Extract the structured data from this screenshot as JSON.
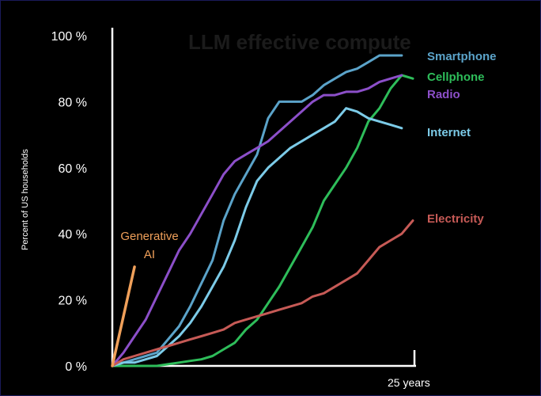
{
  "chart_data": {
    "type": "line",
    "title": "LLM effective compute",
    "xlabel": "",
    "ylabel": "Percent of US households",
    "x_tick_label": "25 years",
    "xlim": [
      0,
      27
    ],
    "ylim": [
      0,
      100
    ],
    "y_ticks": [
      {
        "value": 0,
        "label": "0 %"
      },
      {
        "value": 20,
        "label": "20 %"
      },
      {
        "value": 40,
        "label": "40 %"
      },
      {
        "value": 60,
        "label": "60 %"
      },
      {
        "value": 80,
        "label": "80 %"
      },
      {
        "value": 100,
        "label": "100 %"
      }
    ],
    "series": [
      {
        "name": "Smartphone",
        "color": "#5ba3c9",
        "x": [
          0,
          1,
          2,
          3,
          4,
          5,
          6,
          7,
          8,
          9,
          10,
          11,
          12,
          13,
          14,
          15,
          16,
          17,
          18,
          19,
          20,
          21,
          22,
          23,
          24,
          25,
          26
        ],
        "y": [
          0,
          1,
          2,
          3,
          4,
          8,
          12,
          18,
          25,
          32,
          44,
          52,
          58,
          64,
          75,
          80,
          80,
          80,
          82,
          85,
          87,
          89,
          90,
          92,
          94,
          94,
          94
        ]
      },
      {
        "name": "Cellphone",
        "color": "#2ebd5a",
        "x": [
          0,
          4,
          5,
          6,
          7,
          8,
          9,
          10,
          11,
          12,
          13,
          14,
          15,
          16,
          17,
          18,
          19,
          20,
          21,
          22,
          23,
          24,
          25,
          26,
          27
        ],
        "y": [
          0,
          0,
          0.5,
          1,
          1.5,
          2,
          3,
          5,
          7,
          11,
          14,
          19,
          24,
          30,
          36,
          42,
          50,
          55,
          60,
          66,
          74,
          78,
          84,
          88,
          87
        ]
      },
      {
        "name": "Radio",
        "color": "#8c4fc9",
        "x": [
          0,
          1,
          2,
          3,
          4,
          5,
          6,
          7,
          8,
          9,
          10,
          11,
          12,
          13,
          14,
          15,
          16,
          17,
          18,
          19,
          20,
          21,
          22,
          23,
          24,
          25,
          26
        ],
        "y": [
          0,
          4,
          9,
          14,
          21,
          28,
          35,
          40,
          46,
          52,
          58,
          62,
          64,
          66,
          68,
          71,
          74,
          77,
          80,
          82,
          82,
          83,
          83,
          84,
          86,
          87,
          88
        ]
      },
      {
        "name": "Internet",
        "color": "#7ccbe8",
        "x": [
          0,
          1,
          2,
          3,
          4,
          5,
          6,
          7,
          8,
          9,
          10,
          11,
          12,
          13,
          14,
          15,
          16,
          17,
          18,
          19,
          20,
          21,
          22,
          23,
          24,
          25,
          26
        ],
        "y": [
          0,
          1,
          1,
          2,
          3,
          6,
          9,
          13,
          18,
          24,
          30,
          38,
          48,
          56,
          60,
          63,
          66,
          68,
          70,
          72,
          74,
          78,
          77,
          75,
          74,
          73,
          72
        ]
      },
      {
        "name": "Electricity",
        "color": "#c65a56",
        "x": [
          0,
          1,
          2,
          3,
          4,
          5,
          6,
          7,
          8,
          9,
          10,
          11,
          12,
          13,
          14,
          15,
          16,
          17,
          18,
          19,
          20,
          21,
          22,
          23,
          24,
          25,
          26,
          27
        ],
        "y": [
          0,
          2,
          3,
          4,
          5,
          6,
          7,
          8,
          9,
          10,
          11,
          13,
          14,
          15,
          16,
          17,
          18,
          19,
          21,
          22,
          24,
          26,
          28,
          32,
          36,
          38,
          40,
          44
        ]
      },
      {
        "name": "Generative AI",
        "color": "#f0a05a",
        "x": [
          0,
          2
        ],
        "y": [
          0,
          30
        ]
      }
    ],
    "labels": {
      "Smartphone": "Smartphone",
      "Cellphone": "Cellphone",
      "Radio": "Radio",
      "Internet": "Internet",
      "Electricity": "Electricity",
      "Generative AI": [
        "Generative",
        "AI"
      ]
    }
  }
}
